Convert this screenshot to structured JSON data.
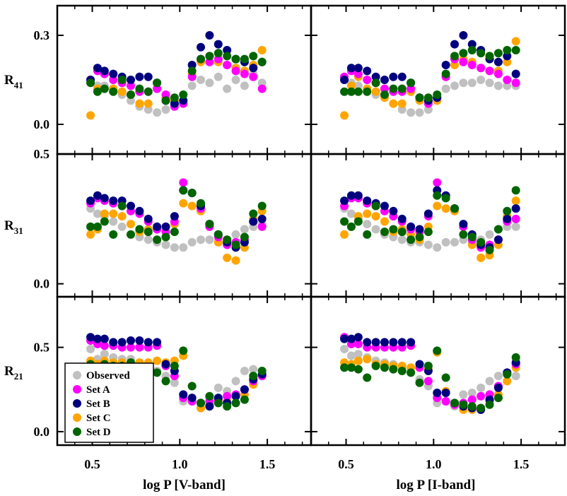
{
  "chart_data": {
    "type": "scatter",
    "title": "",
    "colors": {
      "Observed": "#c0c0c0",
      "Set A": "#ff00ff",
      "Set B": "#00007f",
      "Set C": "#ffa500",
      "Set D": "#006400"
    },
    "legend": {
      "placement": "bottom-left of R21 V-band panel",
      "entries": [
        "Observed",
        "Set A",
        "Set B",
        "Set C",
        "Set D"
      ]
    },
    "columns": [
      {
        "xlabel": "log P [V-band]",
        "xlim": [
          0.3,
          1.75
        ],
        "xticks": [
          "0.5",
          "1.0",
          "1.5"
        ],
        "xtick_values": [
          0.5,
          1.0,
          1.5
        ]
      },
      {
        "xlabel": "log P [I-band]",
        "xlim": [
          0.3,
          1.75
        ],
        "xticks": [
          "0.5",
          "1.0",
          "1.5"
        ],
        "xtick_values": [
          0.5,
          1.0,
          1.5
        ]
      }
    ],
    "rows": [
      {
        "ylabel_main": "R",
        "ylabel_sub": "41",
        "ylim": [
          -0.1,
          0.4
        ],
        "yticks": [
          "0.3",
          "0.0"
        ],
        "ytick_values": [
          0.3,
          0.0
        ]
      },
      {
        "ylabel_main": "R",
        "ylabel_sub": "31",
        "ylim": [
          -0.05,
          0.5
        ],
        "yticks": [
          "0.5",
          "0.0"
        ],
        "ytick_values": [
          0.5,
          0.0
        ]
      },
      {
        "ylabel_main": "R",
        "ylabel_sub": "21",
        "ylim": [
          -0.08,
          0.8
        ],
        "yticks": [
          "0.5",
          "0.0"
        ],
        "ytick_values": [
          0.5,
          0.0
        ]
      }
    ],
    "x": [
      0.49,
      0.53,
      0.57,
      0.62,
      0.67,
      0.72,
      0.77,
      0.82,
      0.87,
      0.92,
      0.97,
      1.02,
      1.07,
      1.12,
      1.17,
      1.22,
      1.27,
      1.32,
      1.37,
      1.42,
      1.47
    ],
    "panels": [
      {
        "row": 0,
        "col": 0,
        "series": [
          {
            "name": "Observed",
            "values": [
              0.15,
              0.13,
              0.13,
              0.12,
              0.1,
              0.08,
              0.06,
              0.05,
              0.04,
              0.05,
              0.06,
              0.08,
              0.13,
              0.15,
              0.14,
              0.16,
              0.12,
              0.15,
              0.13,
              0.17,
              0.14
            ]
          },
          {
            "name": "Set A",
            "values": [
              0.15,
              0.18,
              0.17,
              0.15,
              0.14,
              0.13,
              0.11,
              0.11,
              0.12,
              0.1,
              0.06,
              0.07,
              0.16,
              0.22,
              0.21,
              0.22,
              0.2,
              0.18,
              0.17,
              0.16,
              0.12
            ]
          },
          {
            "name": "Set B",
            "values": [
              0.15,
              0.19,
              0.18,
              0.17,
              0.16,
              0.15,
              0.16,
              0.16,
              0.14,
              0.08,
              0.07,
              0.08,
              0.2,
              0.26,
              0.3,
              0.27,
              0.25,
              0.22,
              0.21,
              0.19,
              0.21
            ]
          },
          {
            "name": "Set C",
            "values": [
              0.03,
              0.12,
              0.17,
              0.12,
              0.11,
              0.1,
              0.07,
              0.07,
              0.12,
              0.09,
              0.08,
              0.07,
              0.17,
              0.21,
              0.23,
              0.21,
              0.2,
              0.19,
              0.18,
              0.2,
              0.25
            ]
          },
          {
            "name": "Set D",
            "values": [
              0.14,
              0.11,
              0.12,
              0.11,
              0.15,
              0.1,
              0.12,
              0.11,
              0.14,
              0.08,
              0.09,
              0.1,
              0.18,
              0.22,
              0.23,
              0.24,
              0.23,
              0.22,
              0.22,
              0.23,
              0.21
            ]
          }
        ]
      },
      {
        "row": 0,
        "col": 1,
        "series": [
          {
            "name": "Observed",
            "values": [
              0.15,
              0.14,
              0.13,
              0.12,
              0.1,
              0.09,
              0.07,
              0.05,
              0.04,
              0.04,
              0.05,
              0.08,
              0.12,
              0.13,
              0.14,
              0.14,
              0.15,
              0.14,
              0.13,
              0.13,
              0.13
            ]
          },
          {
            "name": "Set A",
            "values": [
              0.16,
              0.18,
              0.17,
              0.15,
              0.14,
              0.12,
              0.11,
              0.11,
              0.12,
              0.09,
              0.07,
              0.09,
              0.16,
              0.22,
              0.21,
              0.2,
              0.19,
              0.18,
              0.17,
              0.15,
              0.14
            ]
          },
          {
            "name": "Set B",
            "values": [
              0.15,
              0.19,
              0.19,
              0.18,
              0.16,
              0.15,
              0.16,
              0.16,
              0.14,
              0.09,
              0.08,
              0.09,
              0.2,
              0.27,
              0.3,
              0.27,
              0.25,
              0.22,
              0.21,
              0.23,
              0.17
            ]
          },
          {
            "name": "Set C",
            "values": [
              0.03,
              0.13,
              0.16,
              0.12,
              0.11,
              0.09,
              0.07,
              0.07,
              0.11,
              0.08,
              0.07,
              0.08,
              0.16,
              0.2,
              0.22,
              0.21,
              0.19,
              0.18,
              0.18,
              0.21,
              0.28
            ]
          },
          {
            "name": "Set D",
            "values": [
              0.11,
              0.11,
              0.11,
              0.11,
              0.14,
              0.1,
              0.12,
              0.12,
              0.14,
              0.09,
              0.09,
              0.1,
              0.17,
              0.23,
              0.24,
              0.25,
              0.24,
              0.23,
              0.24,
              0.25,
              0.25
            ]
          }
        ]
      },
      {
        "row": 1,
        "col": 0,
        "series": [
          {
            "name": "Observed",
            "values": [
              0.29,
              0.27,
              0.26,
              0.24,
              0.22,
              0.19,
              0.18,
              0.17,
              0.16,
              0.15,
              0.14,
              0.14,
              0.16,
              0.17,
              0.17,
              0.16,
              0.17,
              0.19,
              0.21,
              0.22,
              0.23
            ]
          },
          {
            "name": "Set A",
            "values": [
              0.31,
              0.33,
              0.32,
              0.31,
              0.3,
              0.28,
              0.27,
              0.24,
              0.21,
              0.2,
              0.24,
              0.39,
              0.35,
              0.29,
              0.22,
              0.18,
              0.15,
              0.16,
              0.17,
              0.24,
              0.22
            ]
          },
          {
            "name": "Set B",
            "values": [
              0.32,
              0.34,
              0.33,
              0.32,
              0.32,
              0.3,
              0.28,
              0.25,
              0.22,
              0.22,
              0.26,
              0.36,
              0.35,
              0.3,
              0.23,
              0.19,
              0.16,
              0.14,
              0.16,
              0.24,
              0.25
            ]
          },
          {
            "name": "Set C",
            "values": [
              0.19,
              0.21,
              0.27,
              0.27,
              0.26,
              0.23,
              0.2,
              0.21,
              0.21,
              0.18,
              0.23,
              0.31,
              0.3,
              0.28,
              0.22,
              0.16,
              0.1,
              0.09,
              0.14,
              0.25,
              0.28
            ]
          },
          {
            "name": "Set D",
            "values": [
              0.22,
              0.22,
              0.24,
              0.19,
              0.3,
              0.19,
              0.21,
              0.2,
              0.17,
              0.18,
              0.2,
              0.36,
              0.35,
              0.31,
              0.23,
              0.19,
              0.17,
              0.15,
              0.18,
              0.27,
              0.3
            ]
          }
        ]
      },
      {
        "row": 1,
        "col": 1,
        "series": [
          {
            "name": "Observed",
            "values": [
              0.29,
              0.27,
              0.25,
              0.23,
              0.21,
              0.19,
              0.18,
              0.17,
              0.16,
              0.16,
              0.15,
              0.14,
              0.16,
              0.16,
              0.17,
              0.16,
              0.17,
              0.19,
              0.21,
              0.22,
              0.22
            ]
          },
          {
            "name": "Set A",
            "values": [
              0.3,
              0.33,
              0.33,
              0.31,
              0.3,
              0.28,
              0.26,
              0.24,
              0.21,
              0.2,
              0.26,
              0.39,
              0.34,
              0.29,
              0.22,
              0.17,
              0.14,
              0.15,
              0.17,
              0.24,
              0.25
            ]
          },
          {
            "name": "Set B",
            "values": [
              0.32,
              0.34,
              0.34,
              0.32,
              0.31,
              0.3,
              0.28,
              0.25,
              0.22,
              0.21,
              0.27,
              0.36,
              0.34,
              0.29,
              0.23,
              0.19,
              0.15,
              0.14,
              0.17,
              0.25,
              0.29
            ]
          },
          {
            "name": "Set C",
            "values": [
              0.19,
              0.22,
              0.26,
              0.27,
              0.26,
              0.24,
              0.2,
              0.21,
              0.19,
              0.17,
              0.22,
              0.3,
              0.29,
              0.28,
              0.22,
              0.15,
              0.1,
              0.11,
              0.15,
              0.26,
              0.32
            ]
          },
          {
            "name": "Set D",
            "values": [
              0.24,
              0.22,
              0.24,
              0.19,
              0.3,
              0.2,
              0.21,
              0.2,
              0.17,
              0.18,
              0.2,
              0.34,
              0.33,
              0.29,
              0.19,
              0.18,
              0.16,
              0.13,
              0.21,
              0.28,
              0.36
            ]
          }
        ]
      },
      {
        "row": 2,
        "col": 0,
        "series": [
          {
            "name": "Observed",
            "values": [
              0.49,
              0.43,
              0.46,
              0.44,
              0.43,
              0.43,
              0.4,
              0.38,
              0.36,
              0.33,
              0.29,
              0.18,
              0.18,
              0.14,
              0.2,
              0.26,
              0.24,
              0.3,
              0.36,
              0.37,
              0.33
            ]
          },
          {
            "name": "Set A",
            "values": [
              0.54,
              0.52,
              0.51,
              0.51,
              0.5,
              0.5,
              0.5,
              0.5,
              0.51,
              0.39,
              0.33,
              0.2,
              0.18,
              0.17,
              0.18,
              0.19,
              0.21,
              0.22,
              0.25,
              0.3,
              0.33
            ]
          },
          {
            "name": "Set B",
            "values": [
              0.56,
              0.55,
              0.55,
              0.53,
              0.53,
              0.54,
              0.54,
              0.53,
              0.53,
              0.4,
              0.36,
              0.22,
              0.2,
              0.17,
              0.15,
              0.2,
              0.17,
              0.21,
              0.25,
              0.31,
              0.34
            ]
          },
          {
            "name": "Set C",
            "values": [
              0.42,
              0.4,
              0.42,
              0.41,
              0.41,
              0.41,
              0.41,
              0.41,
              0.42,
              0.41,
              0.42,
              0.45,
              0.27,
              0.14,
              0.16,
              0.19,
              0.18,
              0.22,
              0.22,
              0.28,
              0.33
            ]
          },
          {
            "name": "Set D",
            "values": [
              0.4,
              0.38,
              0.4,
              0.39,
              0.39,
              0.41,
              0.38,
              0.36,
              0.35,
              0.3,
              0.39,
              0.48,
              0.27,
              0.17,
              0.21,
              0.17,
              0.15,
              0.17,
              0.19,
              0.33,
              0.36
            ]
          }
        ]
      },
      {
        "row": 2,
        "col": 1,
        "series": [
          {
            "name": "Observed",
            "values": [
              0.49,
              0.45,
              0.46,
              0.44,
              0.42,
              0.41,
              0.4,
              0.38,
              0.35,
              0.31,
              0.27,
              0.17,
              0.18,
              0.15,
              0.22,
              0.23,
              0.26,
              0.3,
              0.33,
              0.34,
              0.33
            ]
          },
          {
            "name": "Set A",
            "values": [
              0.56,
              0.52,
              0.52,
              0.5,
              0.5,
              0.5,
              0.5,
              0.5,
              0.51,
              0.38,
              0.3,
              0.2,
              0.18,
              0.16,
              0.17,
              0.19,
              0.21,
              0.22,
              0.27,
              0.35,
              0.4
            ]
          },
          {
            "name": "Set B",
            "values": [
              0.55,
              0.55,
              0.56,
              0.53,
              0.53,
              0.53,
              0.53,
              0.53,
              0.53,
              0.4,
              0.36,
              0.23,
              0.23,
              0.17,
              0.15,
              0.14,
              0.13,
              0.19,
              0.26,
              0.35,
              0.41
            ]
          },
          {
            "name": "Set C",
            "values": [
              0.41,
              0.4,
              0.42,
              0.43,
              0.4,
              0.4,
              0.39,
              0.39,
              0.38,
              0.38,
              0.37,
              0.47,
              0.24,
              0.16,
              0.13,
              0.13,
              0.14,
              0.18,
              0.22,
              0.3,
              0.38
            ]
          },
          {
            "name": "Set D",
            "values": [
              0.38,
              0.38,
              0.37,
              0.32,
              0.39,
              0.38,
              0.37,
              0.36,
              0.35,
              0.29,
              0.39,
              0.48,
              0.32,
              0.17,
              0.16,
              0.15,
              0.14,
              0.16,
              0.2,
              0.34,
              0.44
            ]
          }
        ]
      }
    ]
  }
}
